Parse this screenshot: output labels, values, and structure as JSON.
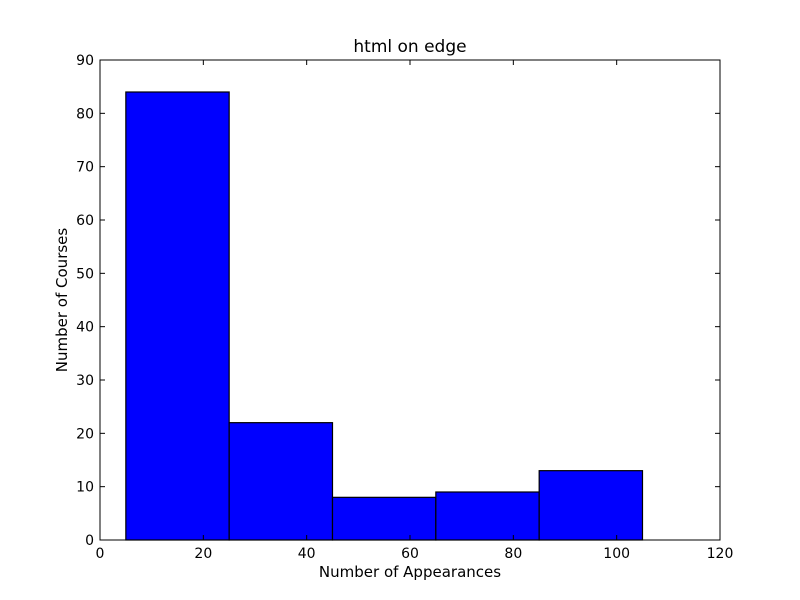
{
  "chart_data": {
    "type": "bar",
    "title": "html on edge",
    "xlabel": "Number of Appearances",
    "ylabel": "Number of Courses",
    "xlim": [
      0,
      120
    ],
    "ylim": [
      0,
      90
    ],
    "xticks": [
      0,
      20,
      40,
      60,
      80,
      100,
      120
    ],
    "yticks": [
      0,
      10,
      20,
      30,
      40,
      50,
      60,
      70,
      80,
      90
    ],
    "bins": [
      {
        "start": 5,
        "end": 25,
        "value": 84
      },
      {
        "start": 25,
        "end": 45,
        "value": 22
      },
      {
        "start": 45,
        "end": 65,
        "value": 8
      },
      {
        "start": 65,
        "end": 85,
        "value": 9
      },
      {
        "start": 85,
        "end": 105,
        "value": 13
      }
    ],
    "grid": false,
    "bar_color": "#0000ff",
    "edge_color": "#000000"
  }
}
